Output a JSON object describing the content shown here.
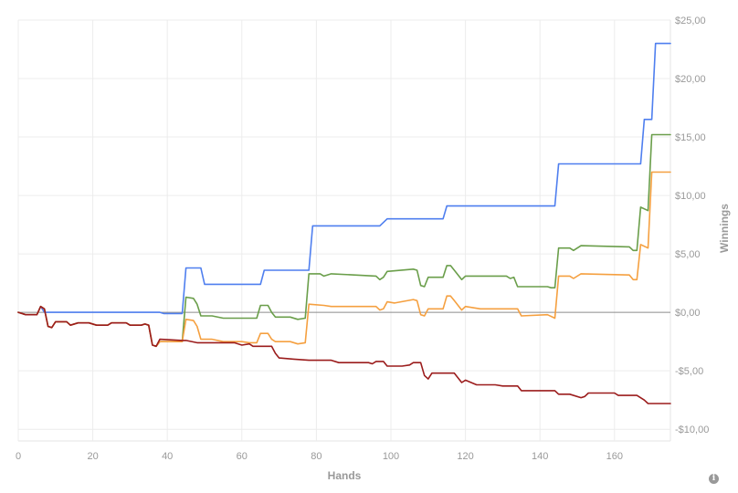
{
  "info_icon": {
    "icon": "info-icon",
    "glyph": "i"
  },
  "chart_data": {
    "type": "line",
    "title": "",
    "xlabel": "Hands",
    "ylabel": "Winnings",
    "xlim": [
      0,
      175
    ],
    "ylim": [
      -11,
      25
    ],
    "grid": true,
    "x_ticks": [
      0,
      20,
      40,
      60,
      80,
      100,
      120,
      140,
      160
    ],
    "x_tick_labels": [
      "0",
      "20",
      "40",
      "60",
      "80",
      "100",
      "120",
      "140",
      "160"
    ],
    "y_ticks": [
      25,
      20,
      15,
      10,
      5,
      0,
      -5,
      -10
    ],
    "y_tick_labels": [
      "$25,00",
      "$20,00",
      "$15,00",
      "$10,00",
      "$5,00",
      "$0,00",
      "-$5,00",
      "-$10,00"
    ],
    "series": [
      {
        "color": "#4f7fef",
        "points": [
          [
            0,
            0
          ],
          [
            2,
            -0.2
          ],
          [
            5,
            -0.2
          ],
          [
            6,
            0.5
          ],
          [
            7,
            0
          ],
          [
            38,
            0
          ],
          [
            39,
            -0.1
          ],
          [
            44,
            -0.1
          ],
          [
            45,
            3.8
          ],
          [
            49,
            3.8
          ],
          [
            50,
            2.4
          ],
          [
            65,
            2.4
          ],
          [
            66,
            3.6
          ],
          [
            78,
            3.6
          ],
          [
            79,
            7.4
          ],
          [
            97,
            7.4
          ],
          [
            99,
            8
          ],
          [
            114,
            8
          ],
          [
            115,
            9.1
          ],
          [
            144,
            9.1
          ],
          [
            145,
            12.7
          ],
          [
            167,
            12.7
          ],
          [
            168,
            16.5
          ],
          [
            170,
            16.5
          ],
          [
            171,
            23
          ],
          [
            175,
            23
          ]
        ]
      },
      {
        "color": "#6a9e4a",
        "points": [
          [
            0,
            0
          ],
          [
            2,
            -0.2
          ],
          [
            5,
            -0.2
          ],
          [
            6,
            0.5
          ],
          [
            7,
            0.3
          ],
          [
            8,
            -1.2
          ],
          [
            9,
            -1.3
          ],
          [
            10,
            -0.8
          ],
          [
            13,
            -0.8
          ],
          [
            14,
            -1.1
          ],
          [
            16,
            -0.9
          ],
          [
            19,
            -0.9
          ],
          [
            21,
            -1.1
          ],
          [
            24,
            -1.1
          ],
          [
            25,
            -0.9
          ],
          [
            29,
            -0.9
          ],
          [
            30,
            -1.1
          ],
          [
            33,
            -1.1
          ],
          [
            34,
            -1.0
          ],
          [
            35,
            -1.1
          ],
          [
            36,
            -2.8
          ],
          [
            37,
            -2.9
          ],
          [
            38,
            -2.5
          ],
          [
            44,
            -2.5
          ],
          [
            45,
            1.3
          ],
          [
            47,
            1.2
          ],
          [
            48,
            0.7
          ],
          [
            49,
            -0.3
          ],
          [
            52,
            -0.3
          ],
          [
            55,
            -0.5
          ],
          [
            64,
            -0.5
          ],
          [
            65,
            0.6
          ],
          [
            67,
            0.6
          ],
          [
            68,
            0
          ],
          [
            69,
            -0.4
          ],
          [
            73,
            -0.4
          ],
          [
            75,
            -0.6
          ],
          [
            77,
            -0.5
          ],
          [
            78,
            3.3
          ],
          [
            81,
            3.3
          ],
          [
            82,
            3.1
          ],
          [
            84,
            3.3
          ],
          [
            96,
            3.1
          ],
          [
            97,
            2.8
          ],
          [
            98,
            3
          ],
          [
            99,
            3.5
          ],
          [
            106,
            3.7
          ],
          [
            107,
            3.6
          ],
          [
            108,
            2.3
          ],
          [
            109,
            2.2
          ],
          [
            110,
            3
          ],
          [
            114,
            3
          ],
          [
            115,
            4
          ],
          [
            116,
            4
          ],
          [
            117,
            3.6
          ],
          [
            119,
            2.8
          ],
          [
            120,
            3.1
          ],
          [
            131,
            3.1
          ],
          [
            132,
            2.9
          ],
          [
            133,
            3
          ],
          [
            134,
            2.2
          ],
          [
            142,
            2.2
          ],
          [
            143,
            2.1
          ],
          [
            144,
            2.1
          ],
          [
            145,
            5.5
          ],
          [
            148,
            5.5
          ],
          [
            149,
            5.3
          ],
          [
            151,
            5.7
          ],
          [
            164,
            5.6
          ],
          [
            165,
            5.3
          ],
          [
            166,
            5.3
          ],
          [
            167,
            9
          ],
          [
            169,
            8.7
          ],
          [
            170,
            15.2
          ],
          [
            175,
            15.2
          ]
        ]
      },
      {
        "color": "#f5a040",
        "points": [
          [
            0,
            0
          ],
          [
            2,
            -0.2
          ],
          [
            5,
            -0.2
          ],
          [
            6,
            0.5
          ],
          [
            7,
            0.3
          ],
          [
            8,
            -1.2
          ],
          [
            9,
            -1.3
          ],
          [
            10,
            -0.8
          ],
          [
            13,
            -0.8
          ],
          [
            14,
            -1.1
          ],
          [
            16,
            -0.9
          ],
          [
            19,
            -0.9
          ],
          [
            21,
            -1.1
          ],
          [
            24,
            -1.1
          ],
          [
            25,
            -0.9
          ],
          [
            29,
            -0.9
          ],
          [
            30,
            -1.1
          ],
          [
            33,
            -1.1
          ],
          [
            34,
            -1.0
          ],
          [
            35,
            -1.1
          ],
          [
            36,
            -2.8
          ],
          [
            37,
            -2.9
          ],
          [
            38,
            -2.5
          ],
          [
            44,
            -2.5
          ],
          [
            45,
            -0.6
          ],
          [
            47,
            -0.7
          ],
          [
            48,
            -1.2
          ],
          [
            49,
            -2.3
          ],
          [
            52,
            -2.3
          ],
          [
            55,
            -2.5
          ],
          [
            60,
            -2.5
          ],
          [
            62,
            -2.6
          ],
          [
            64,
            -2.6
          ],
          [
            65,
            -1.8
          ],
          [
            67,
            -1.8
          ],
          [
            68,
            -2.3
          ],
          [
            69,
            -2.5
          ],
          [
            73,
            -2.5
          ],
          [
            75,
            -2.7
          ],
          [
            77,
            -2.6
          ],
          [
            78,
            0.7
          ],
          [
            82,
            0.6
          ],
          [
            84,
            0.5
          ],
          [
            96,
            0.5
          ],
          [
            97,
            0.2
          ],
          [
            98,
            0.3
          ],
          [
            99,
            0.9
          ],
          [
            101,
            0.8
          ],
          [
            106,
            1.1
          ],
          [
            107,
            1
          ],
          [
            108,
            -0.2
          ],
          [
            109,
            -0.3
          ],
          [
            110,
            0.3
          ],
          [
            114,
            0.3
          ],
          [
            115,
            1.4
          ],
          [
            116,
            1.4
          ],
          [
            117,
            1
          ],
          [
            119,
            0.2
          ],
          [
            120,
            0.5
          ],
          [
            124,
            0.3
          ],
          [
            134,
            0.3
          ],
          [
            135,
            -0.3
          ],
          [
            142,
            -0.2
          ],
          [
            144,
            -0.5
          ],
          [
            145,
            3.1
          ],
          [
            148,
            3.1
          ],
          [
            149,
            2.9
          ],
          [
            151,
            3.3
          ],
          [
            164,
            3.2
          ],
          [
            165,
            2.8
          ],
          [
            166,
            2.8
          ],
          [
            167,
            5.8
          ],
          [
            169,
            5.5
          ],
          [
            170,
            12
          ],
          [
            175,
            12
          ]
        ]
      },
      {
        "color": "#9b1c1c",
        "points": [
          [
            0,
            0
          ],
          [
            2,
            -0.2
          ],
          [
            5,
            -0.2
          ],
          [
            6,
            0.5
          ],
          [
            7,
            0.3
          ],
          [
            8,
            -1.2
          ],
          [
            9,
            -1.3
          ],
          [
            10,
            -0.8
          ],
          [
            13,
            -0.8
          ],
          [
            14,
            -1.1
          ],
          [
            16,
            -0.9
          ],
          [
            19,
            -0.9
          ],
          [
            21,
            -1.1
          ],
          [
            24,
            -1.1
          ],
          [
            25,
            -0.9
          ],
          [
            29,
            -0.9
          ],
          [
            30,
            -1.1
          ],
          [
            33,
            -1.1
          ],
          [
            34,
            -1.0
          ],
          [
            35,
            -1.1
          ],
          [
            36,
            -2.8
          ],
          [
            37,
            -2.9
          ],
          [
            38,
            -2.3
          ],
          [
            44,
            -2.4
          ],
          [
            45,
            -2.4
          ],
          [
            48,
            -2.6
          ],
          [
            58,
            -2.6
          ],
          [
            60,
            -2.8
          ],
          [
            62,
            -2.7
          ],
          [
            63,
            -2.9
          ],
          [
            68,
            -2.9
          ],
          [
            69,
            -3.5
          ],
          [
            70,
            -3.9
          ],
          [
            74,
            -4
          ],
          [
            78,
            -4.1
          ],
          [
            84,
            -4.1
          ],
          [
            86,
            -4.3
          ],
          [
            94,
            -4.3
          ],
          [
            95,
            -4.4
          ],
          [
            96,
            -4.2
          ],
          [
            98,
            -4.2
          ],
          [
            99,
            -4.6
          ],
          [
            103,
            -4.6
          ],
          [
            105,
            -4.5
          ],
          [
            106,
            -4.3
          ],
          [
            108,
            -4.3
          ],
          [
            109,
            -5.4
          ],
          [
            110,
            -5.7
          ],
          [
            111,
            -5.2
          ],
          [
            117,
            -5.2
          ],
          [
            119,
            -6
          ],
          [
            120,
            -5.8
          ],
          [
            123,
            -6.2
          ],
          [
            128,
            -6.2
          ],
          [
            130,
            -6.3
          ],
          [
            134,
            -6.3
          ],
          [
            135,
            -6.7
          ],
          [
            144,
            -6.7
          ],
          [
            145,
            -7
          ],
          [
            148,
            -7
          ],
          [
            151,
            -7.3
          ],
          [
            152,
            -7.2
          ],
          [
            153,
            -6.9
          ],
          [
            160,
            -6.9
          ],
          [
            161,
            -7.1
          ],
          [
            166,
            -7.1
          ],
          [
            168,
            -7.5
          ],
          [
            169,
            -7.8
          ],
          [
            175,
            -7.8
          ]
        ]
      }
    ]
  }
}
